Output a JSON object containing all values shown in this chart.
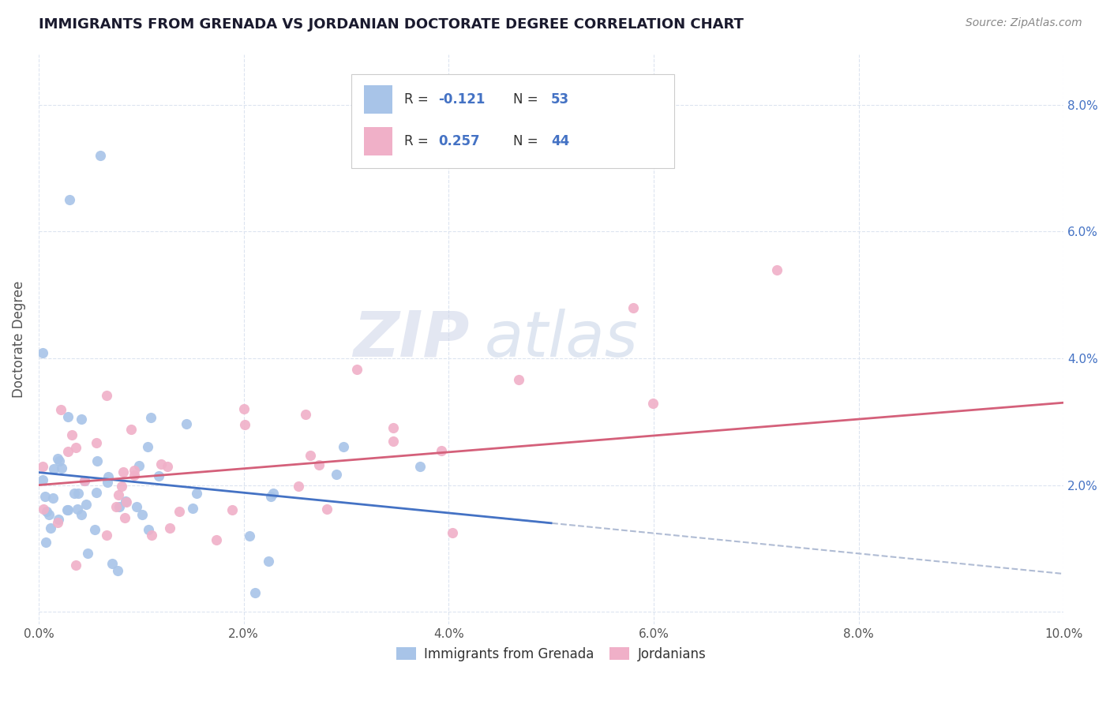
{
  "title": "IMMIGRANTS FROM GRENADA VS JORDANIAN DOCTORATE DEGREE CORRELATION CHART",
  "source_text": "Source: ZipAtlas.com",
  "ylabel": "Doctorate Degree",
  "xlim": [
    0.0,
    0.1
  ],
  "ylim": [
    -0.002,
    0.088
  ],
  "x_tick_labels": [
    "0.0%",
    "2.0%",
    "4.0%",
    "6.0%",
    "8.0%",
    "10.0%"
  ],
  "x_tick_values": [
    0.0,
    0.02,
    0.04,
    0.06,
    0.08,
    0.1
  ],
  "y_tick_values": [
    0.0,
    0.02,
    0.04,
    0.06,
    0.08
  ],
  "y_tick_labels_right": [
    "",
    "2.0%",
    "4.0%",
    "6.0%",
    "8.0%"
  ],
  "watermark_zip": "ZIP",
  "watermark_atlas": "atlas",
  "legend_r1": "R = -0.121   N = 53",
  "legend_r2": "R = 0.257   N = 44",
  "series1_color": "#a8c4e8",
  "series1_line_color": "#4472c4",
  "series2_color": "#f0b0c8",
  "series2_line_color": "#d4607a",
  "trend_dash_color": "#b0bcd4",
  "grid_color": "#dce4f0",
  "background_color": "#ffffff",
  "title_color": "#1a1a2e",
  "source_color": "#888888",
  "right_axis_color": "#4472c4",
  "legend_text_color": "#333333",
  "legend_val_color": "#4472c4"
}
